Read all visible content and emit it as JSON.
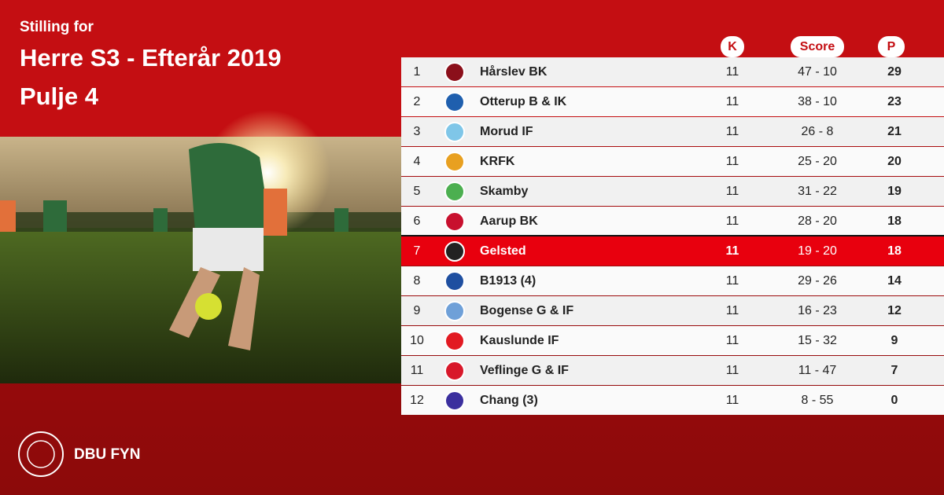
{
  "header": {
    "subtitle": "Stilling for",
    "title": "Herre S3 - Efterår 2019",
    "group": "Pulje 4"
  },
  "table": {
    "columns": [
      "K",
      "Score",
      "P"
    ],
    "rows": [
      [
        1,
        "Hårslev BK",
        11,
        "47 - 10",
        29
      ],
      [
        2,
        "Otterup B & IK",
        11,
        "38 - 10",
        23
      ],
      [
        3,
        "Morud IF",
        11,
        "26 - 8",
        21
      ],
      [
        4,
        "KRFK",
        11,
        "25 - 20",
        20
      ],
      [
        5,
        "Skamby",
        11,
        "31 - 22",
        19
      ],
      [
        6,
        "Aarup BK",
        11,
        "28 - 20",
        18
      ],
      [
        7,
        "Gelsted",
        11,
        "19 - 20",
        18
      ],
      [
        8,
        "B1913 (4)",
        11,
        "29 - 26",
        14
      ],
      [
        9,
        "Bogense G & IF",
        11,
        "16 - 23",
        12
      ],
      [
        10,
        "Kauslunde IF",
        11,
        "15 - 32",
        9
      ],
      [
        11,
        "Veflinge G &  IF",
        11,
        "11 - 47",
        7
      ],
      [
        12,
        "Chang (3)",
        11,
        "8 - 55",
        0
      ]
    ],
    "highlight_row": 6
  },
  "footer": {
    "brand": "DBU FYN"
  }
}
